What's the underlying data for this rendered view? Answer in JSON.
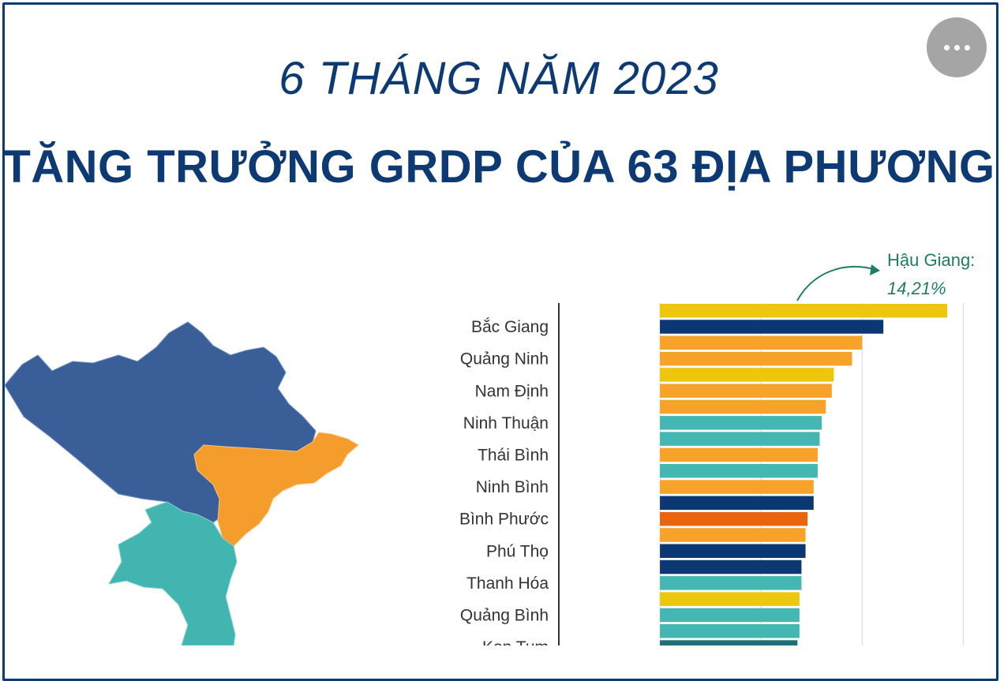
{
  "header": {
    "subtitle": "6 THÁNG NĂM 2023",
    "title": "TĂNG TRƯỞNG GRDP CỦA 63 ĐỊA PHƯƠNG",
    "more_icon": "more-horizontal-icon"
  },
  "callout": {
    "name": "Hậu Giang:",
    "value": "14,21%"
  },
  "colors": {
    "navy": "#0b3873",
    "orange": "#f7a229",
    "teal": "#45b7b2",
    "yellow": "#ecc70d",
    "dark_orange": "#e8650e",
    "dark_teal": "#1f6f78",
    "title": "#0d3a73",
    "callout": "#1e7d63",
    "map_north": "#3a5f98"
  },
  "chart_data": {
    "type": "bar",
    "orientation": "horizontal",
    "label_every": 2,
    "xlim": [
      -5,
      16
    ],
    "grid": true,
    "categories": [
      "Hậu Giang",
      "Bắc Giang",
      "",
      "Quảng Ninh",
      "",
      "Nam Định",
      "",
      "Ninh Thuận",
      "",
      "Thái Bình",
      "",
      "Ninh Bình",
      "",
      "Bình Phước",
      "",
      "Phú Thọ",
      "",
      "Thanh Hóa",
      "",
      "Quảng Bình",
      "",
      "Kon Tum"
    ],
    "values": [
      14.21,
      11.05,
      10.0,
      9.5,
      8.6,
      8.5,
      8.2,
      8.0,
      7.9,
      7.8,
      7.8,
      7.6,
      7.6,
      7.3,
      7.2,
      7.2,
      7.0,
      7.0,
      6.9,
      6.9,
      6.9,
      6.8
    ],
    "bar_colors": [
      "yellow",
      "navy",
      "orange",
      "orange",
      "yellow",
      "orange",
      "orange",
      "teal",
      "teal",
      "orange",
      "teal",
      "orange",
      "navy",
      "dark_orange",
      "orange",
      "navy",
      "navy",
      "teal",
      "yellow",
      "teal",
      "teal",
      "dark_teal"
    ]
  }
}
